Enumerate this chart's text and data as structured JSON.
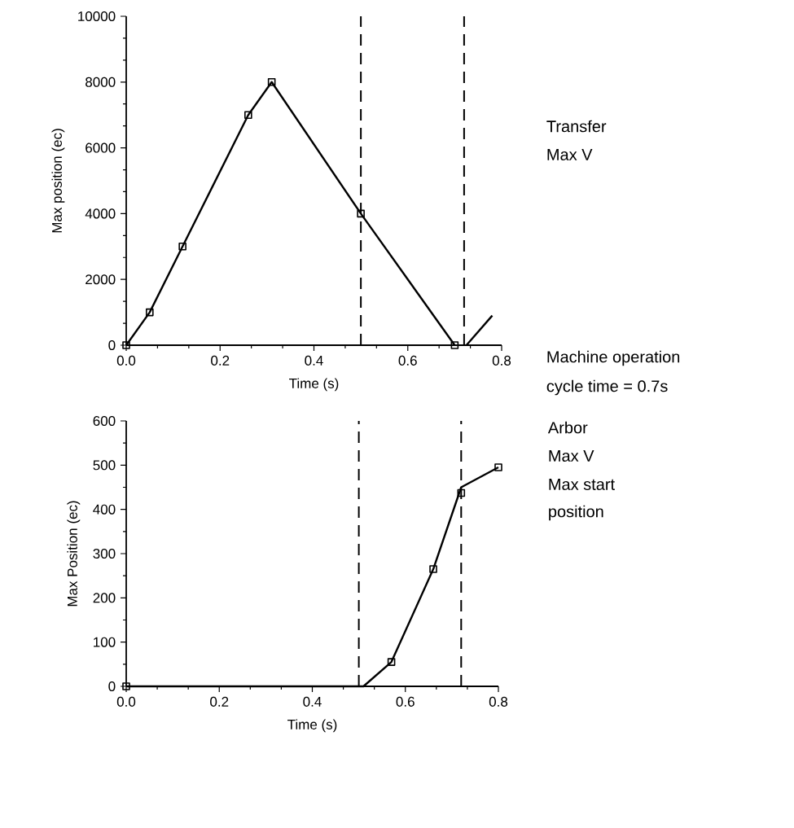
{
  "chart_data": [
    {
      "type": "line",
      "xlabel": "Time (s)",
      "ylabel": "Max position (ec)",
      "xlim": [
        0,
        0.8
      ],
      "ylim": [
        0,
        10000
      ],
      "xticks": [
        {
          "value": 0,
          "label": "0.0"
        },
        {
          "value": 0.2,
          "label": "0.2"
        },
        {
          "value": 0.4,
          "label": "0.4"
        },
        {
          "value": 0.6,
          "label": "0.6"
        },
        {
          "value": 0.8,
          "label": "0.8"
        }
      ],
      "yticks": [
        0,
        2000,
        4000,
        6000,
        8000,
        10000
      ],
      "marker": "square",
      "line_style": "solid",
      "series": [
        {
          "x": [
            0,
            0.05,
            0.12,
            0.26,
            0.31,
            0.5,
            0.7
          ],
          "values": [
            0,
            1000,
            3000,
            7000,
            8000,
            4000,
            0
          ],
          "color": "#000000"
        },
        {
          "x": [
            0.725,
            0.78
          ],
          "values": [
            0,
            900
          ],
          "color": "#000000",
          "marker": "none"
        }
      ],
      "ref_lines": [
        {
          "axis": "x",
          "value": 0.5,
          "line_style": "dashed",
          "color": "#000000"
        },
        {
          "axis": "x",
          "value": 0.72,
          "line_style": "dashed",
          "color": "#000000"
        }
      ],
      "annotations": [
        "Transfer",
        "Max V",
        "Machine operation",
        "cycle time = 0.7s"
      ]
    },
    {
      "type": "line",
      "xlabel": "Time (s)",
      "ylabel": "Max Position (ec)",
      "xlim": [
        0,
        0.8
      ],
      "ylim": [
        0,
        600
      ],
      "xticks": [
        {
          "value": 0,
          "label": "0.0"
        },
        {
          "value": 0.2,
          "label": "0.2"
        },
        {
          "value": 0.4,
          "label": "0.4"
        },
        {
          "value": 0.6,
          "label": "0.6"
        },
        {
          "value": 0.8,
          "label": "0.8"
        }
      ],
      "yticks": [
        0,
        100,
        200,
        300,
        400,
        500,
        600
      ],
      "marker": "square",
      "line_style": "solid",
      "series": [
        {
          "x": [
            0,
            0.51,
            0.57,
            0.66,
            0.72,
            0.8
          ],
          "values": [
            0,
            0,
            55,
            265,
            450,
            495
          ],
          "color": "#000000",
          "marker": "none"
        },
        {
          "type": "scatter",
          "x": [
            0,
            0.57,
            0.66,
            0.72,
            0.8
          ],
          "values": [
            0,
            55,
            265,
            437,
            495
          ],
          "color": "#000000"
        }
      ],
      "ref_lines": [
        {
          "axis": "x",
          "value": 0.5,
          "line_style": "dashed",
          "color": "#000000"
        },
        {
          "axis": "x",
          "value": 0.72,
          "line_style": "dashed",
          "color": "#000000"
        }
      ],
      "annotations": [
        "Arbor",
        "Max V",
        "Max start",
        "position"
      ]
    }
  ]
}
